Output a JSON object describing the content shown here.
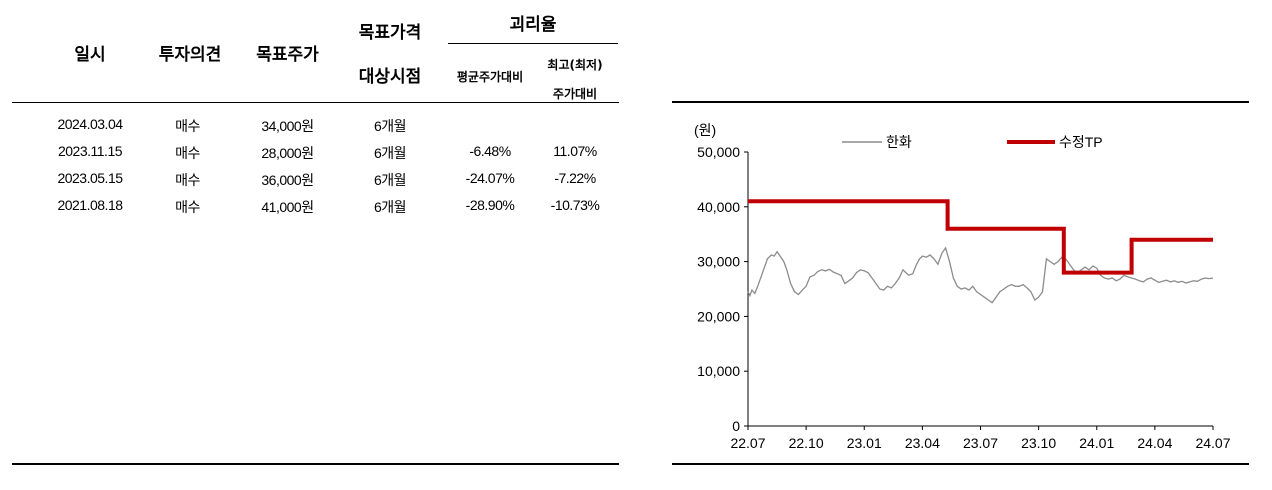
{
  "table": {
    "headers": {
      "date": "일시",
      "opinion": "투자의견",
      "target": "목표주가",
      "period_line1": "목표가격",
      "period_line2": "대상시점",
      "disparity": "괴리율",
      "avg": "평균주가대비",
      "hilo_line1": "최고(최저)",
      "hilo_line2": "주가대비"
    },
    "rows": [
      {
        "date": "2024.03.04",
        "opinion": "매수",
        "target": "34,000원",
        "period": "6개월",
        "avg": "",
        "hilo": ""
      },
      {
        "date": "2023.11.15",
        "opinion": "매수",
        "target": "28,000원",
        "period": "6개월",
        "avg": "-6.48%",
        "hilo": "11.07%"
      },
      {
        "date": "2023.05.15",
        "opinion": "매수",
        "target": "36,000원",
        "period": "6개월",
        "avg": "-24.07%",
        "hilo": "-7.22%"
      },
      {
        "date": "2021.08.18",
        "opinion": "매수",
        "target": "41,000원",
        "period": "6개월",
        "avg": "-28.90%",
        "hilo": "-10.73%"
      }
    ]
  },
  "chart_data": {
    "type": "line",
    "unit_label": "(원)",
    "ylim": [
      0,
      50000
    ],
    "yticks": [
      "0",
      "10,000",
      "20,000",
      "30,000",
      "40,000",
      "50,000"
    ],
    "xticks": [
      "22.07",
      "22.10",
      "23.01",
      "23.04",
      "23.07",
      "23.10",
      "24.01",
      "24.04",
      "24.07"
    ],
    "legend_position": "top",
    "grid": false,
    "series": [
      {
        "name": "한화",
        "color": "#8c8c8c",
        "x": [
          0,
          0.1,
          0.2,
          0.35,
          0.5,
          0.7,
          0.85,
          1,
          1.2,
          1.35,
          1.5,
          1.7,
          1.85,
          2,
          2.2,
          2.4,
          2.6,
          2.8,
          3,
          3.2,
          3.4,
          3.6,
          3.8,
          4,
          4.2,
          4.4,
          4.6,
          4.8,
          5,
          5.2,
          5.4,
          5.6,
          5.8,
          6,
          6.2,
          6.4,
          6.6,
          6.8,
          7,
          7.2,
          7.4,
          7.6,
          7.8,
          8,
          8.15,
          8.3,
          8.5,
          8.7,
          8.85,
          9,
          9.2,
          9.4,
          9.6,
          9.8,
          10,
          10.2,
          10.4,
          10.6,
          10.8,
          11,
          11.2,
          11.4,
          11.6,
          11.8,
          12,
          12.2,
          12.4,
          12.6,
          12.8,
          13,
          13.2,
          13.4,
          13.6,
          13.8,
          14,
          14.2,
          14.4,
          14.6,
          14.8,
          15,
          15.2,
          15.4,
          15.6,
          15.8,
          16,
          16.2,
          16.4,
          16.6,
          16.8,
          17,
          17.2,
          17.4,
          17.6,
          17.8,
          18,
          18.2,
          18.4,
          18.6,
          18.8,
          19,
          19.2,
          19.4,
          19.6,
          19.8,
          20,
          20.2,
          20.4,
          20.6,
          20.8,
          21,
          21.2,
          21.4,
          21.6,
          21.8,
          22,
          22.2,
          22.4,
          22.6,
          22.8,
          23,
          23.2,
          23.4,
          23.6,
          23.8,
          24
        ],
        "y": [
          24500,
          23800,
          24800,
          24200,
          25500,
          27500,
          29000,
          30500,
          31200,
          31000,
          31800,
          30800,
          30000,
          28500,
          26000,
          24500,
          24000,
          24800,
          25500,
          27200,
          27500,
          28200,
          28500,
          28300,
          28600,
          28100,
          27800,
          27500,
          26000,
          26500,
          27000,
          28000,
          28500,
          28300,
          28000,
          27000,
          26000,
          25000,
          24800,
          25500,
          25200,
          26000,
          27000,
          28500,
          28000,
          27500,
          27800,
          29500,
          30500,
          31000,
          30800,
          31200,
          30500,
          29500,
          31500,
          32500,
          30000,
          27000,
          25500,
          25000,
          25200,
          24800,
          25500,
          24500,
          24000,
          23500,
          23000,
          22500,
          23500,
          24500,
          25000,
          25500,
          25800,
          25500,
          25500,
          25800,
          25200,
          24500,
          23000,
          23500,
          24500,
          30500,
          30000,
          29500,
          30000,
          30800,
          30500,
          29500,
          28500,
          28000,
          28500,
          29000,
          28500,
          29200,
          28800,
          27500,
          27000,
          26800,
          27000,
          26500,
          26800,
          27500,
          27200,
          27000,
          26800,
          26500,
          26300,
          26800,
          27000,
          26600,
          26200,
          26400,
          26600,
          26300,
          26500,
          26200,
          26400,
          26100,
          26300,
          26500,
          26400,
          26800,
          27000,
          26900,
          27000
        ]
      },
      {
        "name": "수정TP",
        "color": "#c00000",
        "x": [
          0,
          10.3,
          10.3,
          16.3,
          16.3,
          19.8,
          19.8,
          24
        ],
        "y": [
          41000,
          41000,
          36000,
          36000,
          28000,
          28000,
          34000,
          34000
        ]
      }
    ]
  }
}
